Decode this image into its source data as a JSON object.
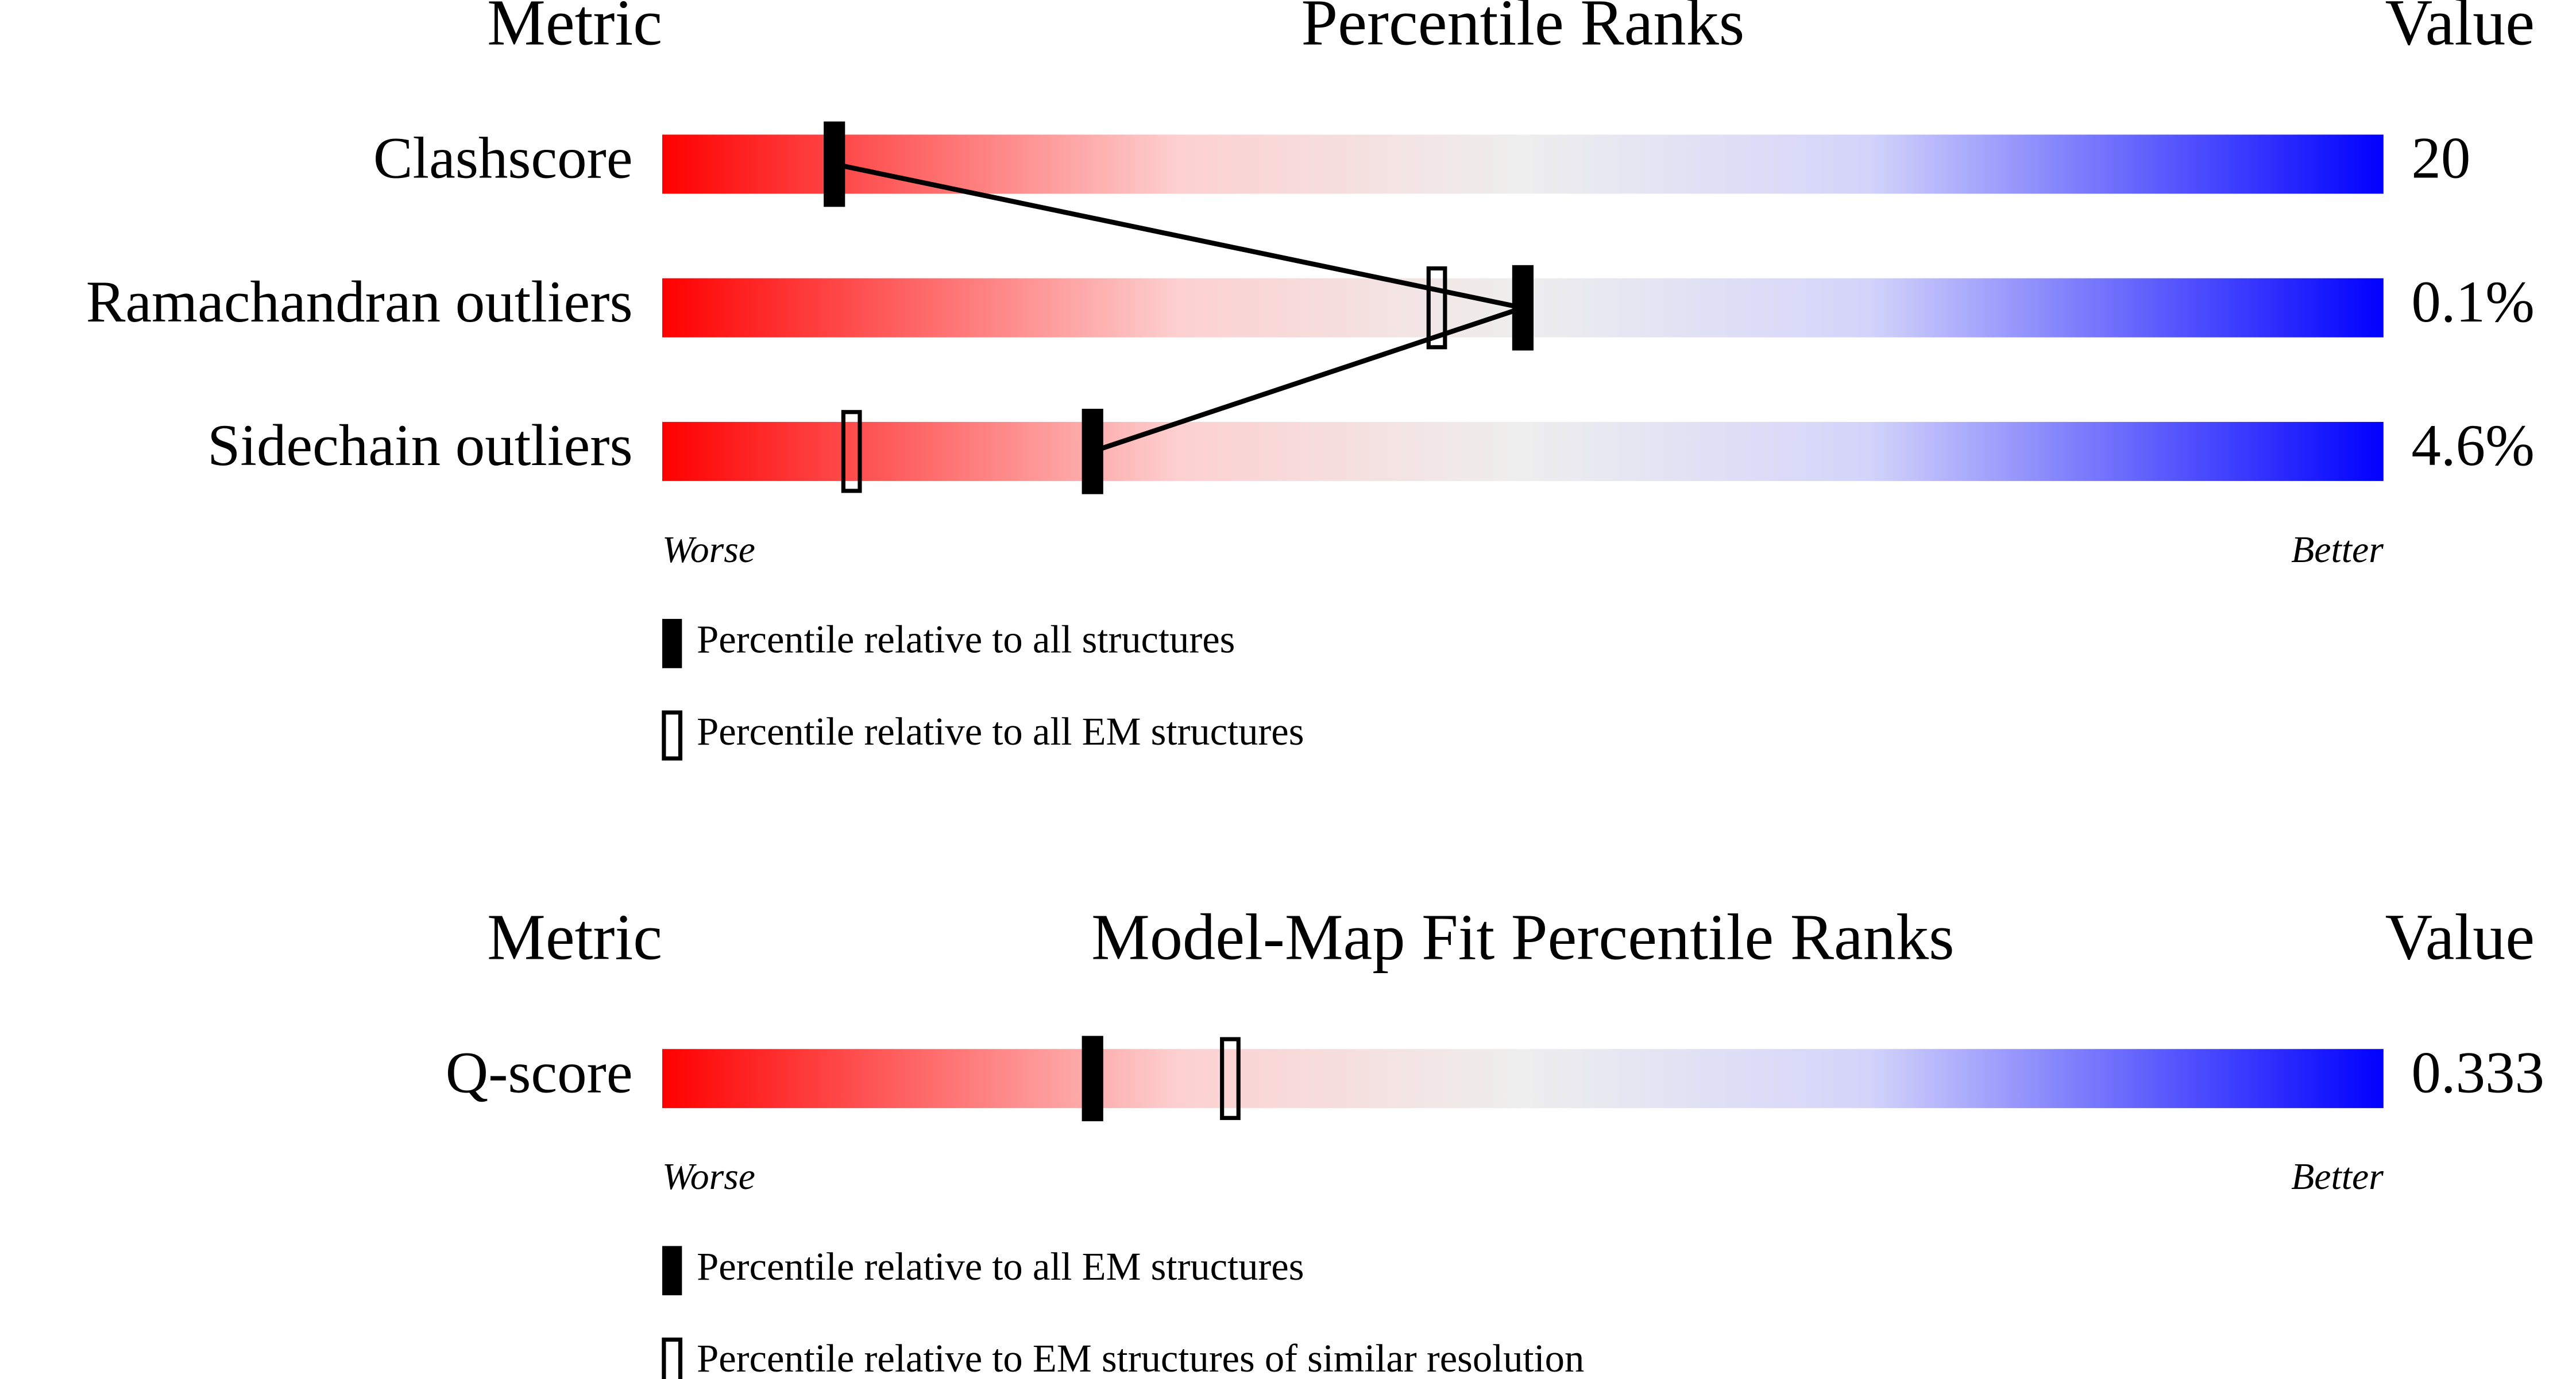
{
  "chart_data": [
    {
      "type": "percentile-slider",
      "title": "Percentile Ranks",
      "metric_header": "Metric",
      "value_header": "Value",
      "worse_label": "Worse",
      "better_label": "Better",
      "xlim": [
        0,
        100
      ],
      "categories": [
        "Clashscore",
        "Ramachandran outliers",
        "Sidechain outliers"
      ],
      "value_labels": [
        "20",
        "0.1%",
        "4.6%"
      ],
      "series": [
        {
          "name": "Percentile relative to all structures",
          "marker": "filled",
          "color": "#000000",
          "connected": true,
          "values": [
            10,
            50,
            25
          ]
        },
        {
          "name": "Percentile relative to all EM structures",
          "marker": "open",
          "color": "#000000",
          "connected": false,
          "values": [
            null,
            45,
            11
          ]
        }
      ]
    },
    {
      "type": "percentile-slider",
      "title": "Model-Map Fit Percentile Ranks",
      "metric_header": "Metric",
      "value_header": "Value",
      "worse_label": "Worse",
      "better_label": "Better",
      "xlim": [
        0,
        100
      ],
      "categories": [
        "Q-score"
      ],
      "value_labels": [
        "0.333"
      ],
      "series": [
        {
          "name": "Percentile relative to all EM structures",
          "marker": "filled",
          "color": "#000000",
          "connected": false,
          "values": [
            25
          ]
        },
        {
          "name": "Percentile relative to EM structures of similar resolution",
          "marker": "open",
          "color": "#000000",
          "connected": false,
          "values": [
            33
          ]
        }
      ]
    }
  ]
}
